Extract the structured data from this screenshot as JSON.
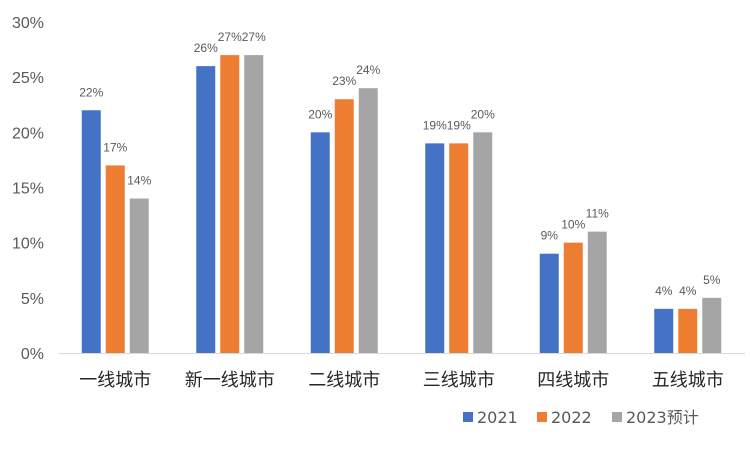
{
  "chart_data": {
    "type": "bar",
    "title": "",
    "xlabel": "",
    "ylabel": "",
    "ylim": [
      0,
      30
    ],
    "y_ticks": [
      "0%",
      "5%",
      "10%",
      "15%",
      "20%",
      "25%",
      "30%"
    ],
    "y_tick_values": [
      0,
      5,
      10,
      15,
      20,
      25,
      30
    ],
    "categories": [
      "一线城市",
      "新一线城市",
      "二线城市",
      "三线城市",
      "四线城市",
      "五线城市"
    ],
    "series": [
      {
        "name": "2021",
        "color": "#4472C4",
        "values": [
          22,
          26,
          20,
          19,
          9,
          4
        ],
        "labels": [
          "22%",
          "26%",
          "20%",
          "19%",
          "9%",
          "4%"
        ]
      },
      {
        "name": "2022",
        "color": "#ED7D31",
        "values": [
          17,
          27,
          23,
          19,
          10,
          4
        ],
        "labels": [
          "17%",
          "27%",
          "23%",
          "19%",
          "10%",
          "4%"
        ]
      },
      {
        "name": "2023预计",
        "color": "#A5A5A5",
        "values": [
          14,
          27,
          24,
          20,
          11,
          5
        ],
        "labels": [
          "14%",
          "27%",
          "24%",
          "20%",
          "11%",
          "5%"
        ]
      }
    ],
    "legend_position": "bottom-right",
    "grid": false
  }
}
